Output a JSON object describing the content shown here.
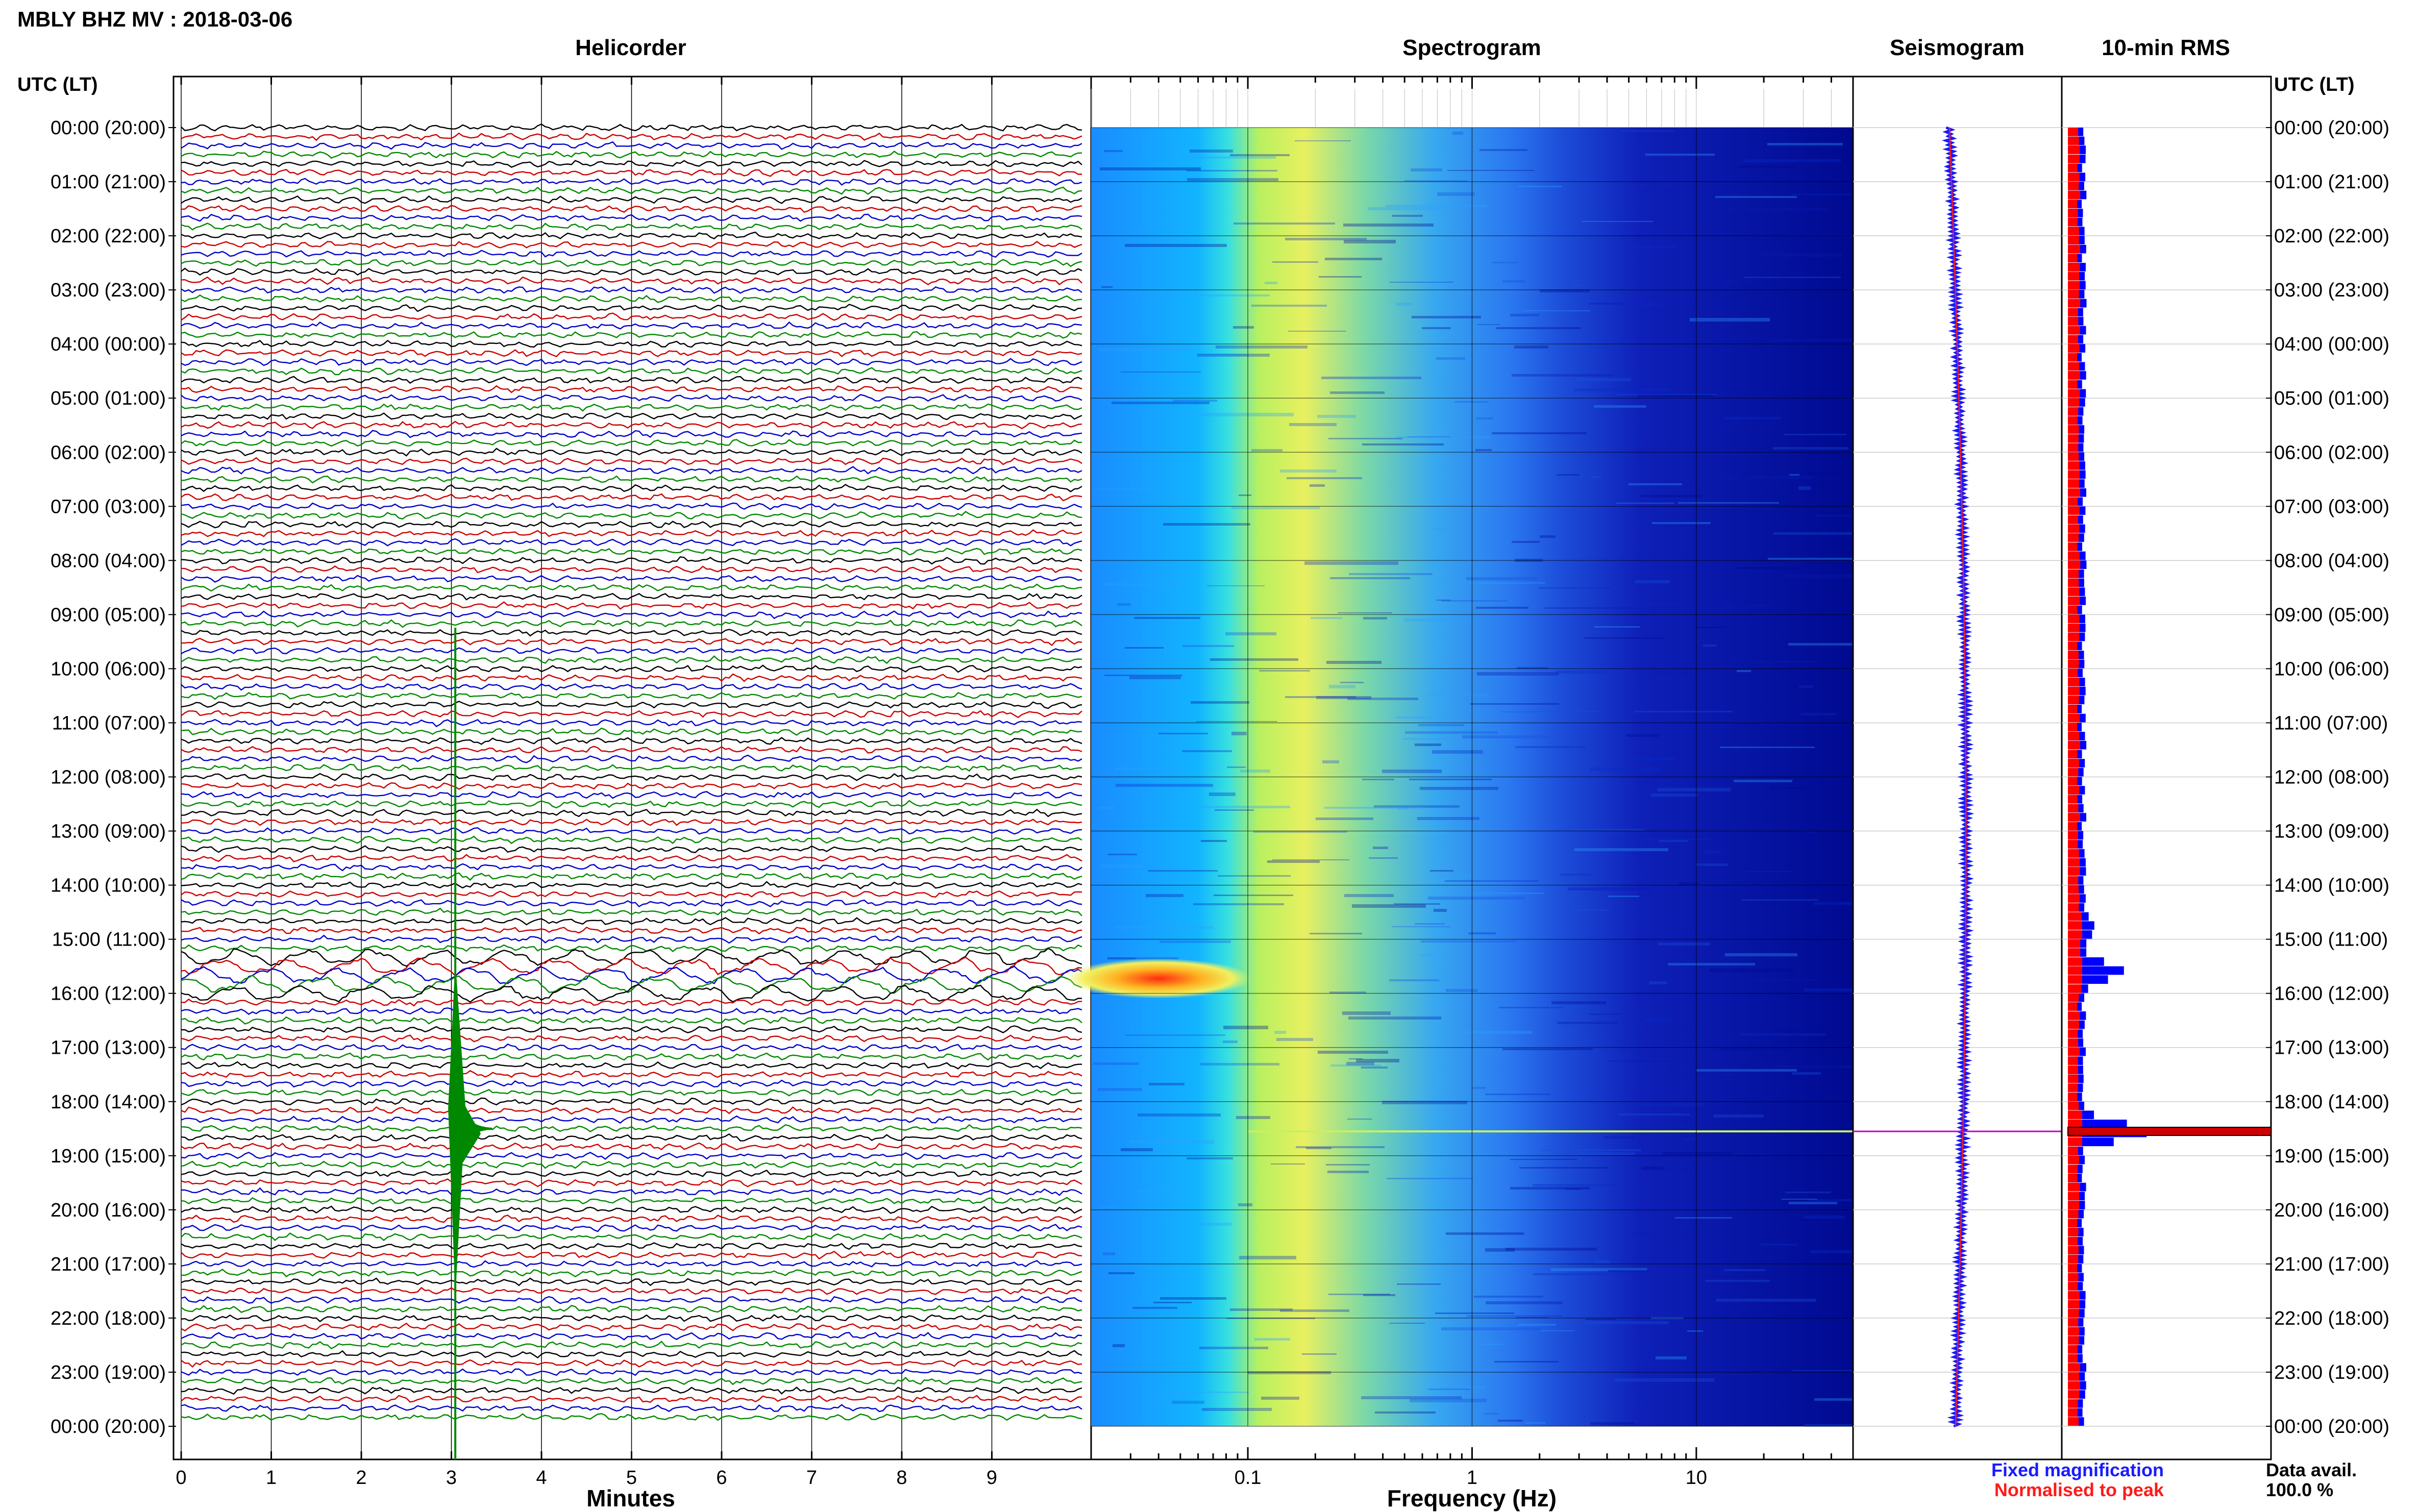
{
  "header": {
    "title": "MBLY BHZ MV : 2018-03-06",
    "time_label_left": "UTC (LT)",
    "time_label_right": "UTC (LT)"
  },
  "panels": {
    "helicorder": "Helicorder",
    "spectrogram": "Spectrogram",
    "seismogram": "Seismogram",
    "rms": "10-min RMS"
  },
  "legend": {
    "fixed": "Fixed magnification",
    "normalised": "Normalised to peak",
    "fixed_color": "#1a1aff",
    "normalised_color": "#ff1a1a"
  },
  "data_avail": {
    "label": "Data avail.",
    "value": "100.0 %"
  },
  "colors": {
    "trace_cycle": [
      "#000000",
      "#cc0000",
      "#0000cc",
      "#008800"
    ],
    "spectrogram_colormap": "jet",
    "rms_fixed": "#0000ff",
    "rms_normalised": "#ff0000"
  },
  "chart_data": [
    {
      "type": "line",
      "name": "helicorder",
      "title": "Helicorder",
      "xlabel": "Minutes",
      "ylabel": "UTC (LT)",
      "xlim": [
        0,
        10
      ],
      "x_ticks": [
        "0",
        "1",
        "2",
        "3",
        "4",
        "5",
        "6",
        "7",
        "8",
        "9"
      ],
      "rows_per_hour": 6,
      "hours": 24,
      "y_tick_labels": [
        "00:00 (20:00)",
        "01:00 (21:00)",
        "02:00 (22:00)",
        "03:00 (23:00)",
        "04:00 (00:00)",
        "05:00 (01:00)",
        "06:00 (02:00)",
        "07:00 (03:00)",
        "08:00 (04:00)",
        "09:00 (05:00)",
        "10:00 (06:00)",
        "11:00 (07:00)",
        "12:00 (08:00)",
        "13:00 (09:00)",
        "14:00 (10:00)",
        "15:00 (11:00)",
        "16:00 (12:00)",
        "17:00 (13:00)",
        "18:00 (14:00)",
        "19:00 (15:00)",
        "20:00 (16:00)",
        "21:00 (17:00)",
        "22:00 (18:00)",
        "23:00 (19:00)",
        "00:00 (20:00)"
      ],
      "events": [
        {
          "hour": 18.5,
          "minute": 3.1,
          "amplitude": "large"
        },
        {
          "hour": 15.6,
          "minute": 0,
          "amplitude": "long-period swell"
        }
      ]
    },
    {
      "type": "heatmap",
      "name": "spectrogram",
      "title": "Spectrogram",
      "xlabel": "Frequency (Hz)",
      "x_scale": "log",
      "xlim": [
        0.02,
        50
      ],
      "x_ticks": [
        0.1,
        1,
        10
      ],
      "x_tick_labels": [
        "0.1",
        "1",
        "10"
      ],
      "y_range_hours": [
        0,
        24
      ],
      "features": [
        {
          "type": "hotspot",
          "hour_range": [
            15.45,
            16.0
          ],
          "freq_range": [
            0.02,
            0.08
          ],
          "level": "high"
        },
        {
          "type": "line",
          "hour": 18.55,
          "freq_range": [
            0.1,
            50
          ],
          "level": "medium"
        }
      ]
    },
    {
      "type": "line",
      "name": "seismogram",
      "title": "Seismogram",
      "series": [
        {
          "name": "Fixed magnification",
          "color": "#1a1aff"
        },
        {
          "name": "Normalised to peak",
          "color": "#ff1a1a"
        }
      ],
      "y_range_hours": [
        0,
        24
      ],
      "peak_hour": 18.55
    },
    {
      "type": "bar",
      "name": "rms",
      "title": "10-min RMS",
      "orientation": "horizontal",
      "bins": 144,
      "series": [
        {
          "name": "Fixed magnification",
          "color": "#0000ff"
        },
        {
          "name": "Normalised to peak",
          "color": "#ff0000"
        }
      ],
      "baseline_fraction": 0.19,
      "peaks": [
        {
          "hour": 14.8,
          "value_fraction": 0.33
        },
        {
          "hour": 15.6,
          "value_fraction": 0.68
        },
        {
          "hour": 18.55,
          "value_fraction": 1.0
        }
      ]
    }
  ]
}
